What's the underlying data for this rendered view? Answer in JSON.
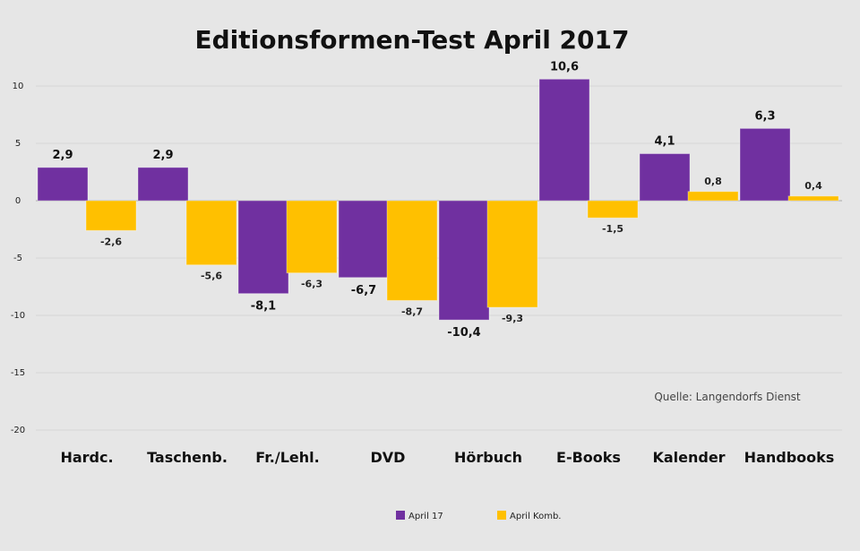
{
  "chart_data": {
    "type": "bar",
    "title": "Editionsformen-Test April 2017",
    "categories": [
      "Hardc.",
      "Taschenb.",
      "Fr./Lehl.",
      "DVD",
      "Hörbuch",
      "E-Books",
      "Kalender",
      "Handbooks"
    ],
    "series": [
      {
        "name": "April 17",
        "color": "#7030a0",
        "values": [
          2.9,
          2.9,
          -8.1,
          -6.7,
          -10.4,
          10.6,
          4.1,
          6.3
        ]
      },
      {
        "name": "April Komb.",
        "color": "#ffc000",
        "values": [
          -2.6,
          -5.6,
          -6.3,
          -8.7,
          -9.3,
          -1.5,
          0.8,
          0.4
        ]
      }
    ],
    "value_labels": [
      [
        "2,9",
        "2,9",
        "-8,1",
        "-6,7",
        "-10,4",
        "10,6",
        "4,1",
        "6,3"
      ],
      [
        "-2,6",
        "-5,6",
        "-6,3",
        "-8,7",
        "-9,3",
        "-1,5",
        "0,8",
        "0,4"
      ]
    ],
    "y_ticks": [
      10,
      5,
      0,
      -5,
      -10,
      -15,
      -20
    ],
    "ylim": [
      -20,
      10
    ],
    "grid": true,
    "legend": "bottom",
    "source": "Quelle: Langendorfs Dienst"
  }
}
